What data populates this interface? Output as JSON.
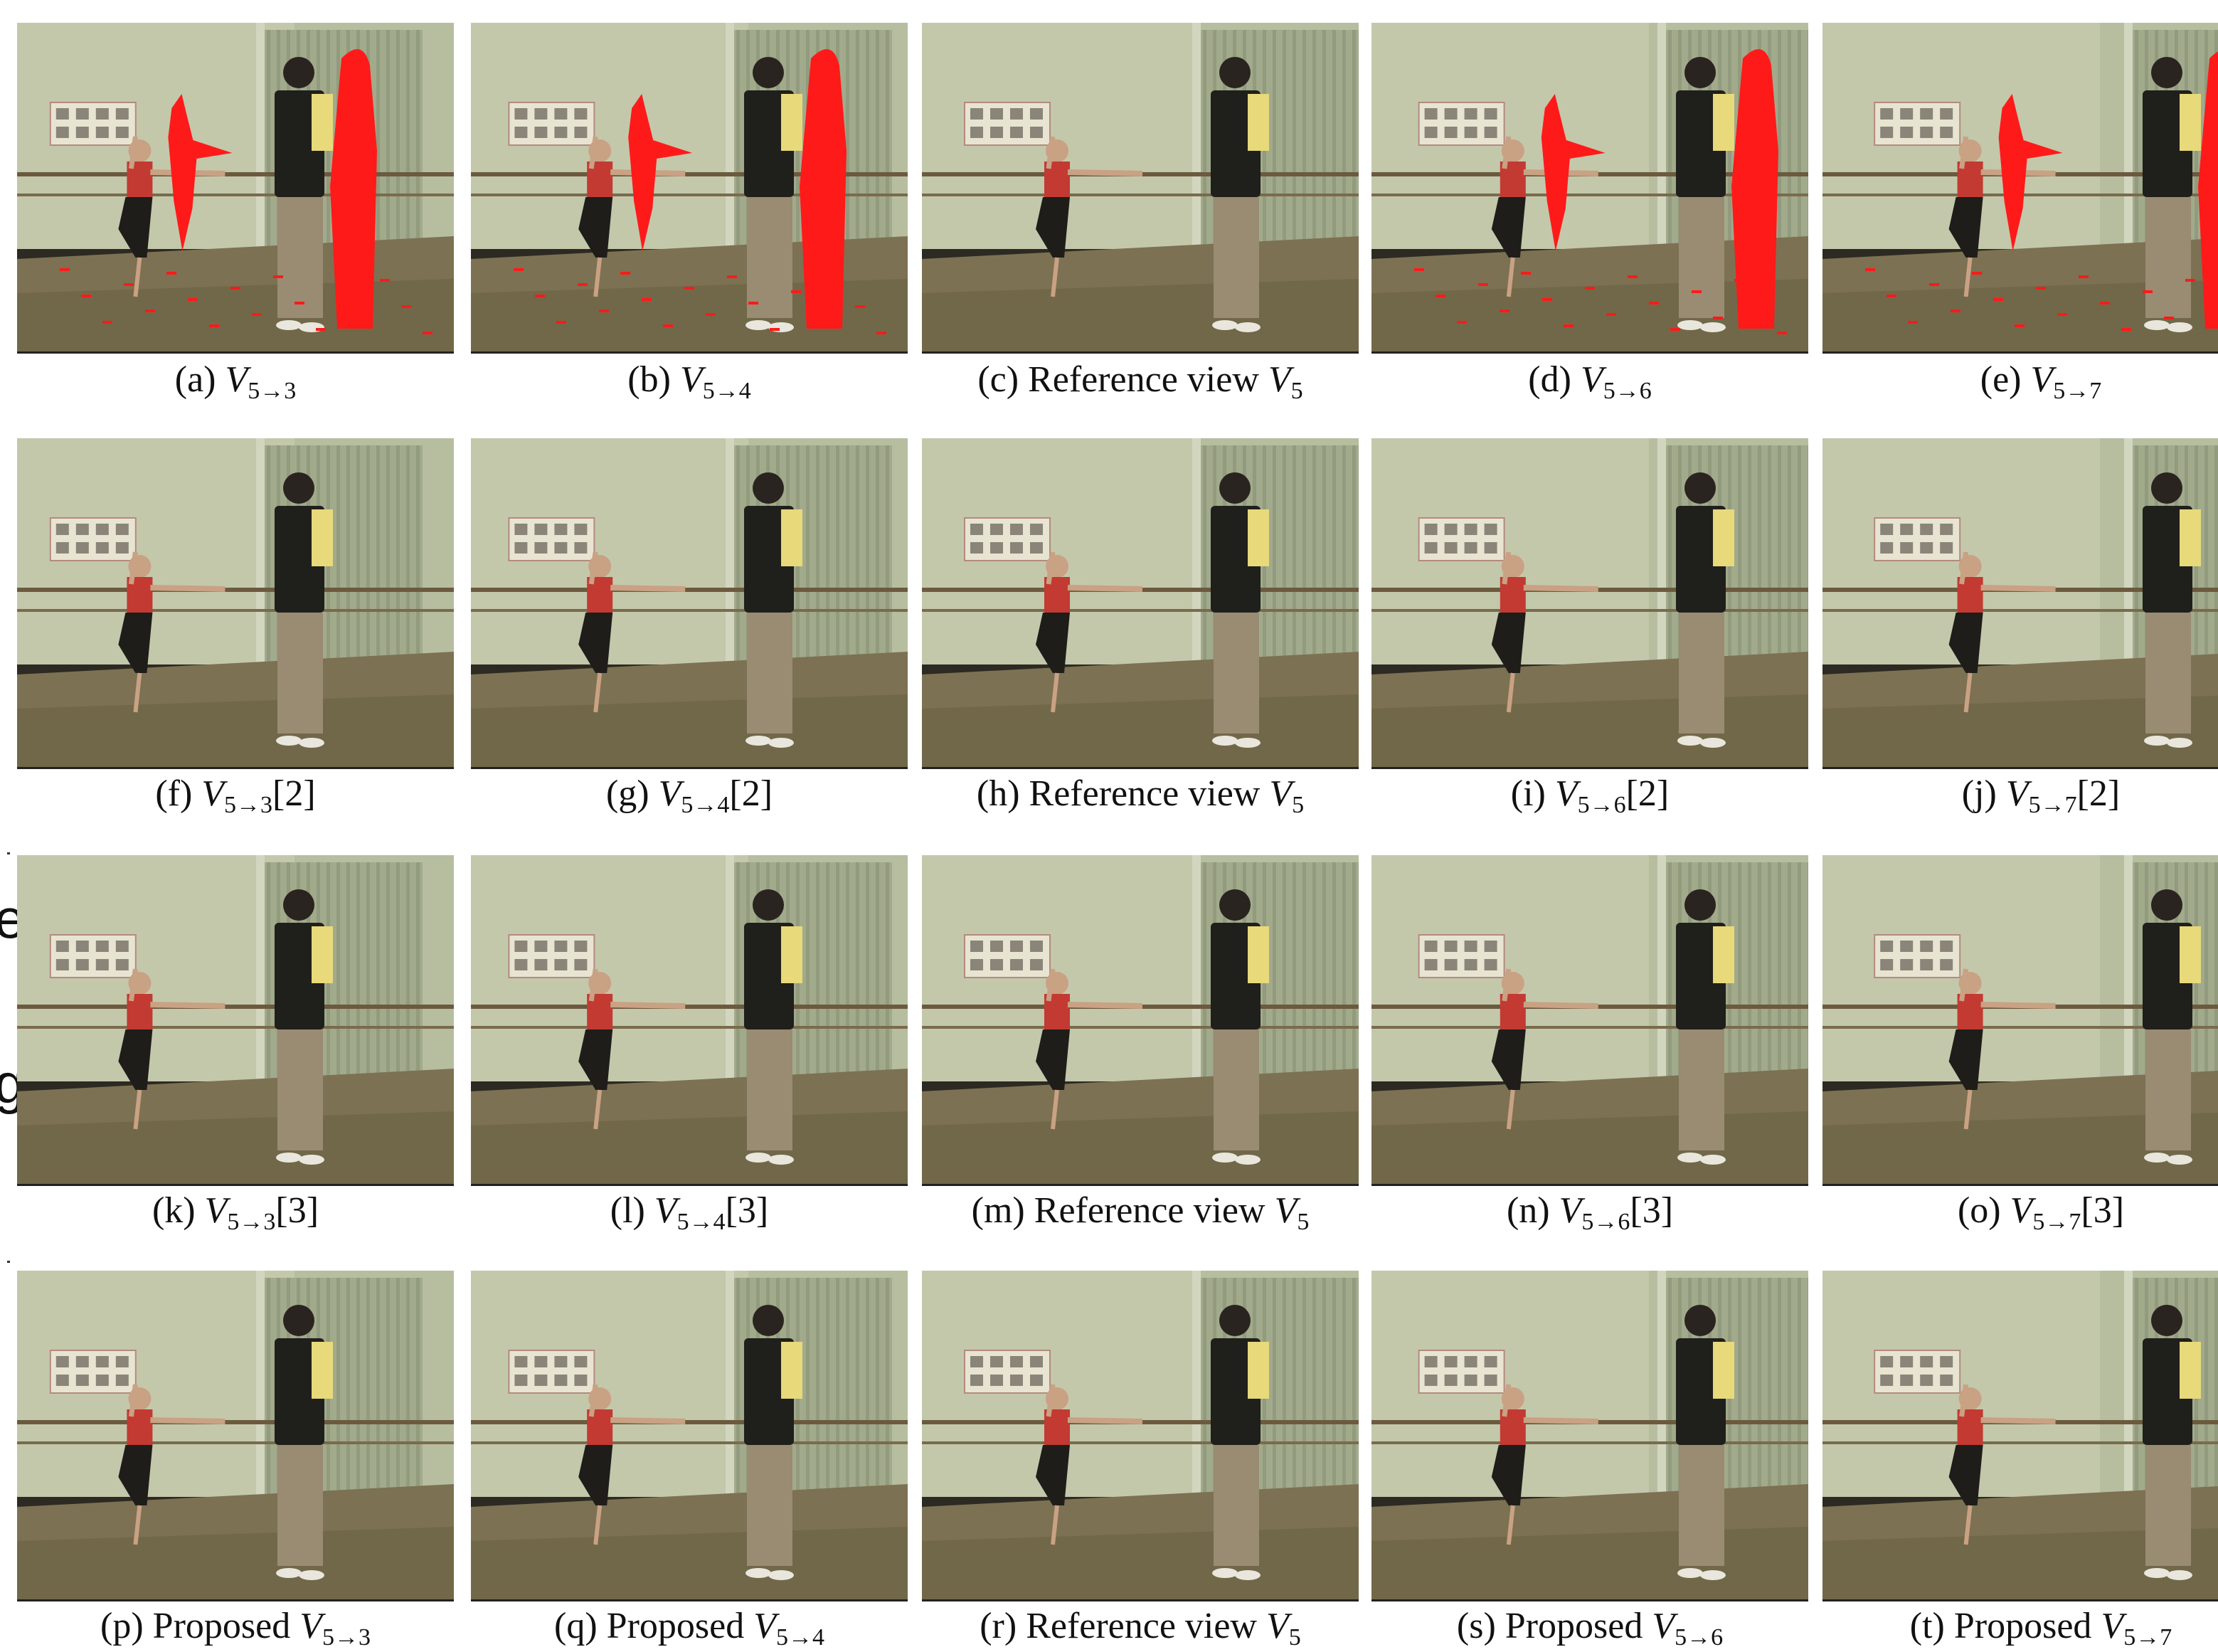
{
  "fragments": [
    "e",
    "g"
  ],
  "rows": [
    {
      "panels": [
        {
          "label": "(a)",
          "kind": "warped",
          "text": "",
          "target": "5→3",
          "suffix": "",
          "occluded": true
        },
        {
          "label": "(b)",
          "kind": "warped",
          "text": "",
          "target": "5→4",
          "suffix": "",
          "occluded": true
        },
        {
          "label": "(c)",
          "kind": "reference",
          "text": "Reference view",
          "target": "5",
          "suffix": "",
          "occluded": false
        },
        {
          "label": "(d)",
          "kind": "warped",
          "text": "",
          "target": "5→6",
          "suffix": "",
          "occluded": true
        },
        {
          "label": "(e)",
          "kind": "warped",
          "text": "",
          "target": "5→7",
          "suffix": "",
          "occluded": true
        }
      ]
    },
    {
      "panels": [
        {
          "label": "(f)",
          "kind": "warped",
          "text": "",
          "target": "5→3",
          "suffix": "[2]",
          "occluded": false
        },
        {
          "label": "(g)",
          "kind": "warped",
          "text": "",
          "target": "5→4",
          "suffix": "[2]",
          "occluded": false
        },
        {
          "label": "(h)",
          "kind": "reference",
          "text": "Reference view",
          "target": "5",
          "suffix": "",
          "occluded": false
        },
        {
          "label": "(i)",
          "kind": "warped",
          "text": "",
          "target": "5→6",
          "suffix": "[2]",
          "occluded": false
        },
        {
          "label": "(j)",
          "kind": "warped",
          "text": "",
          "target": "5→7",
          "suffix": "[2]",
          "occluded": false
        }
      ]
    },
    {
      "panels": [
        {
          "label": "(k)",
          "kind": "warped",
          "text": "",
          "target": "5→3",
          "suffix": "[3]",
          "occluded": false
        },
        {
          "label": "(l)",
          "kind": "warped",
          "text": "",
          "target": "5→4",
          "suffix": "[3]",
          "occluded": false
        },
        {
          "label": "(m)",
          "kind": "reference",
          "text": "Reference view",
          "target": "5",
          "suffix": "",
          "occluded": false
        },
        {
          "label": "(n)",
          "kind": "warped",
          "text": "",
          "target": "5→6",
          "suffix": "[3]",
          "occluded": false
        },
        {
          "label": "(o)",
          "kind": "warped",
          "text": "",
          "target": "5→7",
          "suffix": "[3]",
          "occluded": false
        }
      ]
    },
    {
      "panels": [
        {
          "label": "(p)",
          "kind": "proposed",
          "text": "Proposed",
          "target": "5→3",
          "suffix": "",
          "occluded": false
        },
        {
          "label": "(q)",
          "kind": "proposed",
          "text": "Proposed",
          "target": "5→4",
          "suffix": "",
          "occluded": false
        },
        {
          "label": "(r)",
          "kind": "reference",
          "text": "Reference view",
          "target": "5",
          "suffix": "",
          "occluded": false
        },
        {
          "label": "(s)",
          "kind": "proposed",
          "text": "Proposed",
          "target": "5→6",
          "suffix": "",
          "occluded": false
        },
        {
          "label": "(t)",
          "kind": "proposed",
          "text": "Proposed",
          "target": "5→7",
          "suffix": "",
          "occluded": false
        }
      ]
    }
  ],
  "colors": {
    "occlusion": "#ff1a1a",
    "wall": "#b7bea0",
    "floor": "#7c7152",
    "curtain": "#a2aa8c"
  }
}
